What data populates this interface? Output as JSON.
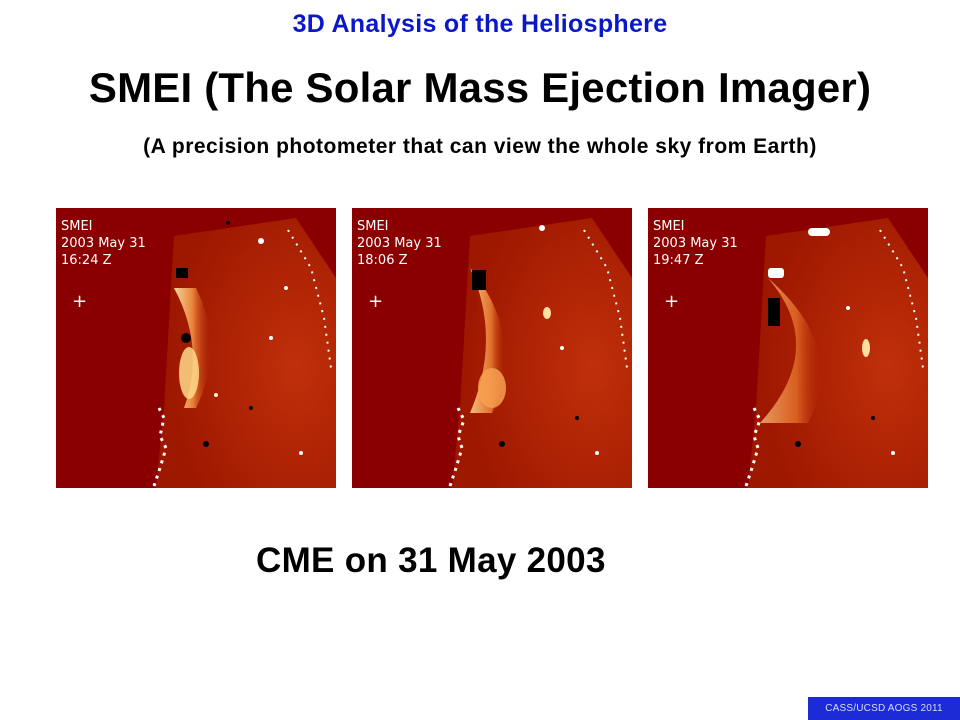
{
  "slide": {
    "header": "3D Analysis of the Heliosphere",
    "title": "SMEI (The Solar Mass Ejection Imager)",
    "subtitle": "(A precision photometer that can view the whole sky from Earth)",
    "caption": "CME on 31 May 2003",
    "footer": "CASS/UCSD AOGS 2011"
  },
  "panels": [
    {
      "instrument": "SMEI",
      "date": "2003 May 31",
      "time": "16:24 Z",
      "marker": "+"
    },
    {
      "instrument": "SMEI",
      "date": "2003 May 31",
      "time": "18:06 Z",
      "marker": "+"
    },
    {
      "instrument": "SMEI",
      "date": "2003 May 31",
      "time": "19:47 Z",
      "marker": "+"
    }
  ],
  "colors": {
    "header_blue": "#0b18c8",
    "image_dark_red": "#8a0000",
    "footer_bg": "#1c2bd6"
  }
}
